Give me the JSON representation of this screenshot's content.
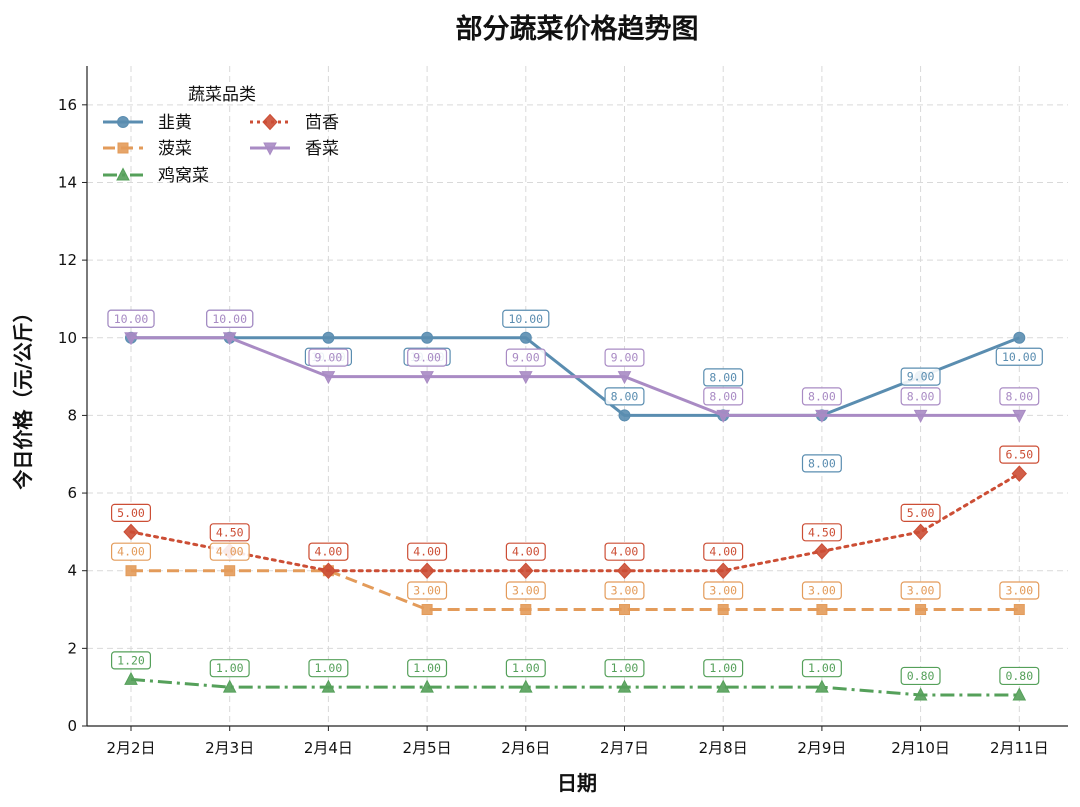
{
  "chart_data": {
    "type": "line",
    "title": "部分蔬菜价格趋势图",
    "xlabel": "日期",
    "ylabel": "今日价格（元/公斤）",
    "ylim": [
      0,
      17
    ],
    "yticks": [
      0,
      2,
      4,
      6,
      8,
      10,
      12,
      14,
      16
    ],
    "grid": true,
    "legend_title": "蔬菜品类",
    "legend_position": "top-left",
    "categories": [
      "2月2日",
      "2月3日",
      "2月4日",
      "2月5日",
      "2月6日",
      "2月7日",
      "2月8日",
      "2月9日",
      "2月10日",
      "2月11日"
    ],
    "series": [
      {
        "name": "韭黄",
        "color": "#5a8db0",
        "marker": "circle",
        "dash": "solid",
        "values": [
          10,
          10,
          10,
          10,
          10,
          8,
          8,
          8,
          9,
          10
        ],
        "labels": [
          "10.00",
          "10.00",
          "10.00",
          "10.00",
          "10.00",
          "8.00",
          "8.00",
          "8.00",
          "9.00",
          "10.00"
        ]
      },
      {
        "name": "菠菜",
        "color": "#e39b5a",
        "marker": "square",
        "dash": "dashed",
        "values": [
          4,
          4,
          4,
          3,
          3,
          3,
          3,
          3,
          3,
          3
        ],
        "labels": [
          "4.00",
          "4.00",
          "4.00",
          "3.00",
          "3.00",
          "3.00",
          "3.00",
          "3.00",
          "3.00",
          "3.00"
        ]
      },
      {
        "name": "鸡窝菜",
        "color": "#55a05a",
        "marker": "triangle-up",
        "dash": "dashdot",
        "values": [
          1.2,
          1,
          1,
          1,
          1,
          1,
          1,
          1,
          0.8,
          0.8
        ],
        "labels": [
          "1.20",
          "1.00",
          "1.00",
          "1.00",
          "1.00",
          "1.00",
          "1.00",
          "1.00",
          "0.80",
          "0.80"
        ]
      },
      {
        "name": "茴香",
        "color": "#cc4e35",
        "marker": "diamond",
        "dash": "dotted",
        "values": [
          5,
          4.5,
          4,
          4,
          4,
          4,
          4,
          4.5,
          5,
          6.5
        ],
        "labels": [
          "5.00",
          "4.50",
          "4.00",
          "4.00",
          "4.00",
          "4.00",
          "4.00",
          "4.50",
          "5.00",
          "6.50"
        ]
      },
      {
        "name": "香菜",
        "color": "#a98bc4",
        "marker": "triangle-down",
        "dash": "solid",
        "values": [
          10,
          10,
          9,
          9,
          9,
          9,
          8,
          8,
          8,
          8
        ],
        "labels": [
          "10.00",
          "10.00",
          "9.00",
          "9.00",
          "9.00",
          "9.00",
          "8.00",
          "8.00",
          "8.00",
          "8.00"
        ]
      }
    ]
  }
}
